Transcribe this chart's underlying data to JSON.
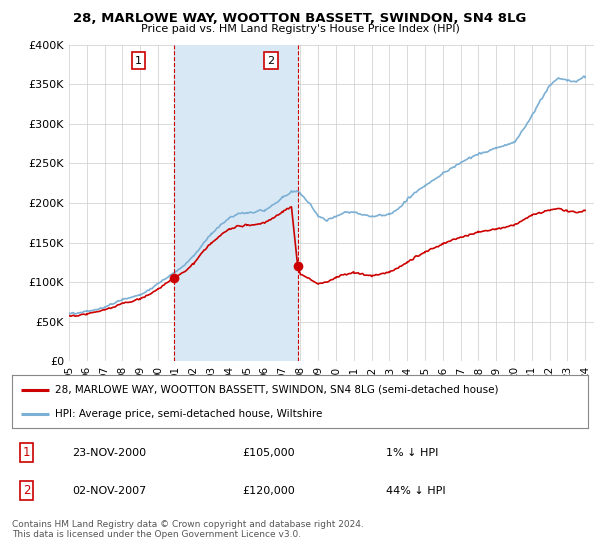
{
  "title": "28, MARLOWE WAY, WOOTTON BASSETT, SWINDON, SN4 8LG",
  "subtitle": "Price paid vs. HM Land Registry's House Price Index (HPI)",
  "ylim": [
    0,
    400000
  ],
  "yticks": [
    0,
    50000,
    100000,
    150000,
    200000,
    250000,
    300000,
    350000,
    400000
  ],
  "ytick_labels": [
    "£0",
    "£50K",
    "£100K",
    "£150K",
    "£200K",
    "£250K",
    "£300K",
    "£350K",
    "£400K"
  ],
  "background_color": "#ffffff",
  "plot_bg_color": "#ffffff",
  "grid_color": "#cccccc",
  "hpi_color": "#7bafd4",
  "price_color": "#cc0000",
  "transaction1_x": 2000.9,
  "transaction1_y": 105000,
  "transaction2_x": 2007.85,
  "transaction2_y": 120000,
  "vline_color": "#cc0000",
  "shade_color": "#d8e8f5",
  "legend_label_price": "28, MARLOWE WAY, WOOTTON BASSETT, SWINDON, SN4 8LG (semi-detached house)",
  "legend_label_hpi": "HPI: Average price, semi-detached house, Wiltshire",
  "ann1_label": "1",
  "ann1_date": "23-NOV-2000",
  "ann1_price": "£105,000",
  "ann1_hpi": "1% ↓ HPI",
  "ann2_label": "2",
  "ann2_date": "02-NOV-2007",
  "ann2_price": "£120,000",
  "ann2_hpi": "44% ↓ HPI",
  "footer": "Contains HM Land Registry data © Crown copyright and database right 2024.\nThis data is licensed under the Open Government Licence v3.0.",
  "xlim": [
    1995,
    2024.5
  ],
  "xticks": [
    1995,
    1996,
    1997,
    1998,
    1999,
    2000,
    2001,
    2002,
    2003,
    2004,
    2005,
    2006,
    2007,
    2008,
    2009,
    2010,
    2011,
    2012,
    2013,
    2014,
    2015,
    2016,
    2017,
    2018,
    2019,
    2020,
    2021,
    2022,
    2023,
    2024
  ]
}
